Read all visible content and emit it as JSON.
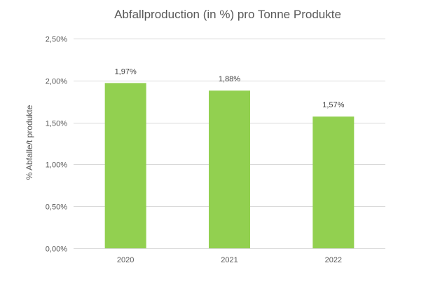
{
  "chart_data": {
    "type": "bar",
    "title": "Abfallproduction (in %) pro Tonne Produkte",
    "xlabel": "",
    "ylabel": "% Abfalle/t produkte",
    "categories": [
      "2020",
      "2021",
      "2022"
    ],
    "values": [
      1.97,
      1.88,
      1.57
    ],
    "data_labels": [
      "1,97%",
      "1,88%",
      "1,57%"
    ],
    "ylim": [
      0,
      2.5
    ],
    "yticks": [
      0,
      0.5,
      1.0,
      1.5,
      2.0,
      2.5
    ],
    "ytick_labels": [
      "0,00%",
      "0,50%",
      "1,00%",
      "1,50%",
      "2,00%",
      "2,50%"
    ],
    "grid": true,
    "legend": "none",
    "bar_color": "#92d050"
  }
}
